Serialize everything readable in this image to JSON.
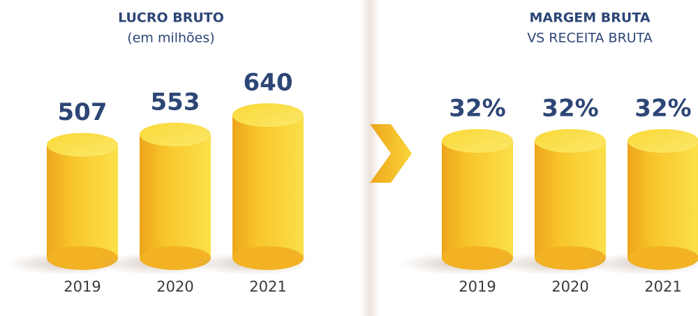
{
  "chart_data": [
    {
      "type": "bar",
      "title": "LUCRO BRUTO",
      "subtitle": "(em milhões)",
      "categories": [
        "2019",
        "2020",
        "2021"
      ],
      "values": [
        507,
        553,
        640
      ],
      "color": "#f7c325"
    },
    {
      "type": "bar",
      "title": "MARGEM BRUTA",
      "subtitle": "VS RECEITA BRUTA",
      "categories": [
        "2019",
        "2020",
        "2021"
      ],
      "values": [
        32,
        32,
        32
      ],
      "value_labels": [
        "32%",
        "32%",
        "32%"
      ],
      "color": "#f7c325"
    }
  ]
}
